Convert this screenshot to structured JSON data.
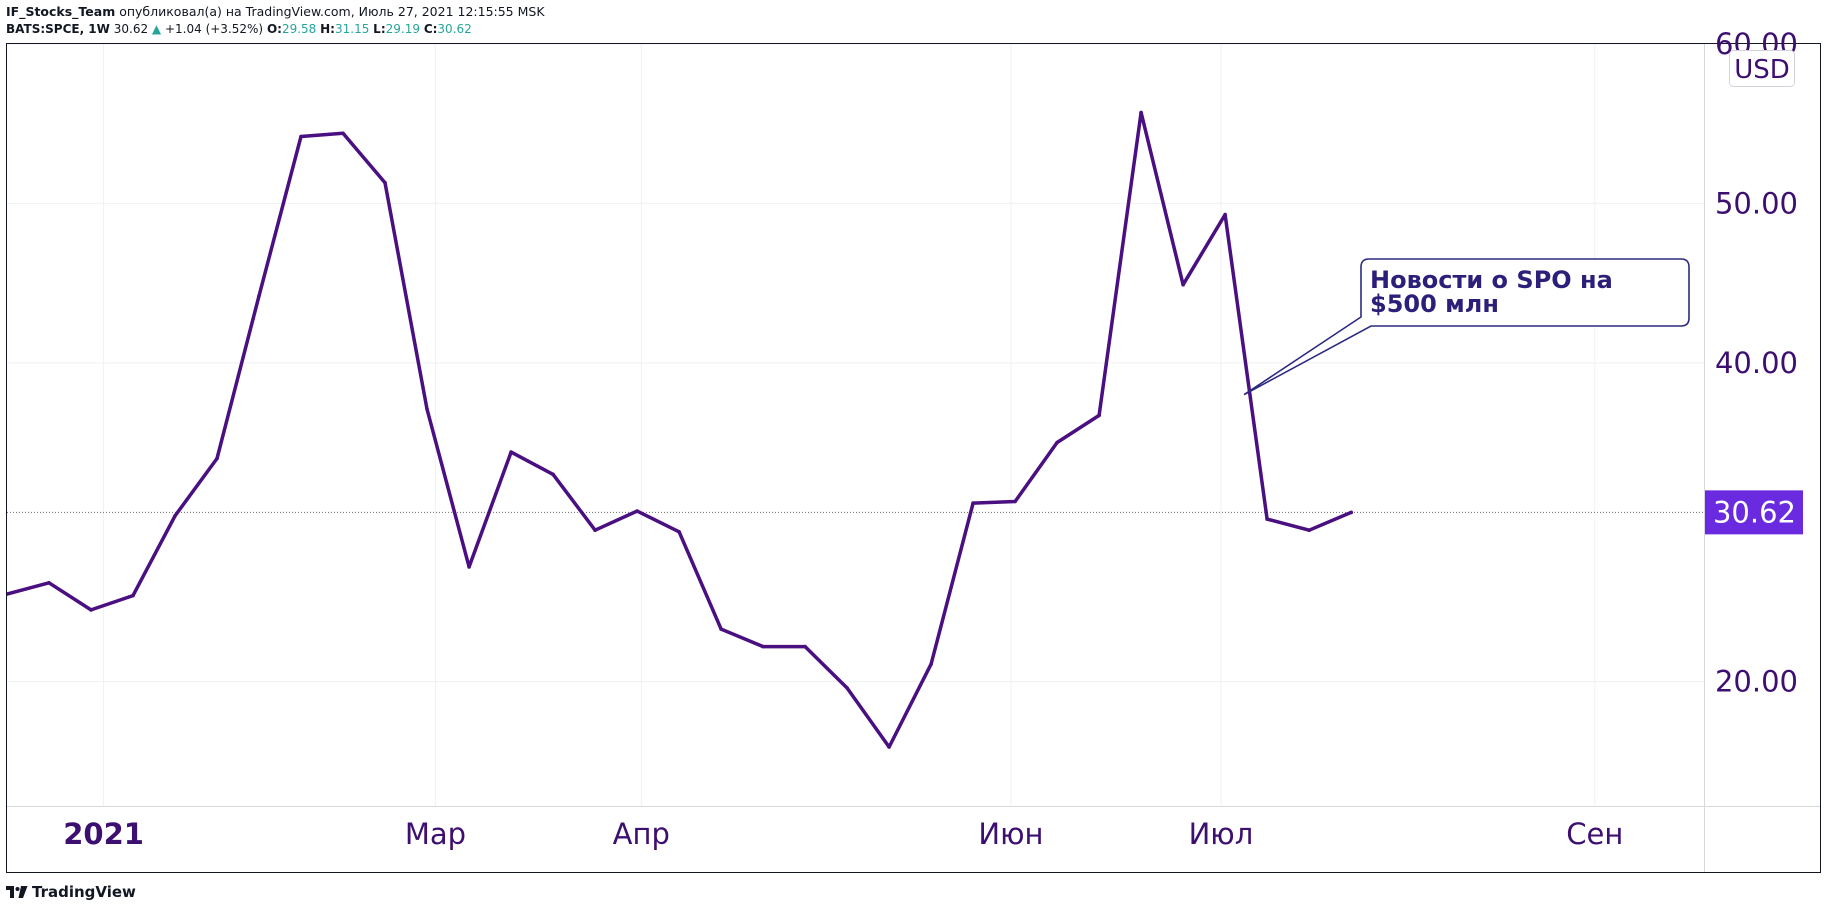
{
  "header": {
    "user": "IF_Stocks_Team",
    "published": "опубликовал(а) на TradingView.com, Июль 27, 2021 12:15:55 MSK",
    "symbol": "BATS:SPCE, 1W",
    "last": "30.62",
    "change_arrow": "▲",
    "change": "+1.04 (+3.52%)",
    "o_label": "O:",
    "o_value": "29.58",
    "h_label": "H:",
    "h_value": "31.15",
    "l_label": "L:",
    "l_value": "29.19",
    "c_label": "C:",
    "c_value": "30.62"
  },
  "footer": {
    "brand": "TradingView",
    "logo_icon": "tradingview-logo-icon"
  },
  "chart_data": {
    "type": "line",
    "currency": "USD",
    "ylim": [
      12.2,
      60.0
    ],
    "y_ticks": [
      {
        "value": 20,
        "label": "20.00"
      },
      {
        "value": 40,
        "label": "40.00"
      },
      {
        "value": 50,
        "label": "50.00"
      },
      {
        "value": 60,
        "label": "60.00"
      }
    ],
    "x_ticks": [
      {
        "week": 2.3,
        "label": "2021",
        "bold": true
      },
      {
        "week": 10.2,
        "label": "Мар",
        "bold": false
      },
      {
        "week": 15.1,
        "label": "Апр",
        "bold": false
      },
      {
        "week": 23.9,
        "label": "Июн",
        "bold": false
      },
      {
        "week": 28.9,
        "label": "Июл",
        "bold": false
      },
      {
        "week": 37.8,
        "label": "Сен",
        "bold": false
      }
    ],
    "xlim": [
      0,
      40.4
    ],
    "last_value": 30.62,
    "last_label": "30.62",
    "series": [
      {
        "values": [
          25.5,
          26.2,
          24.5,
          25.4,
          30.4,
          34.0,
          44.2,
          54.2,
          54.4,
          51.3,
          37.1,
          27.2,
          34.4,
          33.0,
          29.5,
          30.7,
          29.4,
          23.3,
          22.2,
          22.2,
          19.6,
          15.9,
          21.1,
          31.2,
          31.3,
          35.0,
          36.7,
          55.7,
          44.9,
          49.3,
          30.2,
          29.5,
          30.62
        ]
      }
    ],
    "annotation": {
      "text_line1": "Новости о SPO на",
      "text_line2": "$500 млн",
      "target_week": 29.45,
      "target_value": 38.0
    },
    "colors": {
      "line": "#4a0f80",
      "accent": "#6a2be0",
      "axis_text": "#3c0f70",
      "annotation_text": "#2c1f7a",
      "annotation_border": "#2c2a80"
    }
  }
}
